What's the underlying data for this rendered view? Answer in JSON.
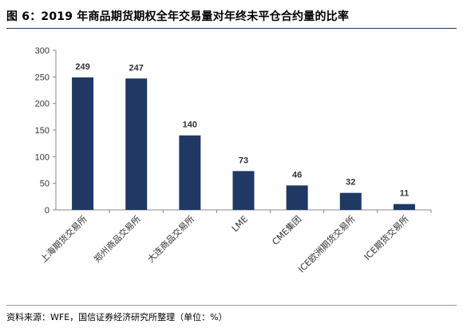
{
  "header": {
    "title": "图 6：2019 年商品期货期权全年交易量对年终未平仓合约量的比率"
  },
  "footer": {
    "source": "资料来源：WFE，国信证券经济研究所整理（单位：%）"
  },
  "chart_data": {
    "type": "bar",
    "title": "",
    "xlabel": "",
    "ylabel": "",
    "categories": [
      "上海期货交易所",
      "郑州商品交易所",
      "大连商品交易所",
      "LME",
      "CME集团",
      "ICE欧洲期货交易所",
      "ICE期货交易所"
    ],
    "values": [
      249,
      247,
      140,
      73,
      46,
      32,
      11
    ],
    "ylim": [
      0,
      300
    ],
    "yticks": [
      0,
      50,
      100,
      150,
      200,
      250,
      300
    ],
    "grid": false,
    "legend": "none",
    "bar_color": "#1f3864"
  }
}
